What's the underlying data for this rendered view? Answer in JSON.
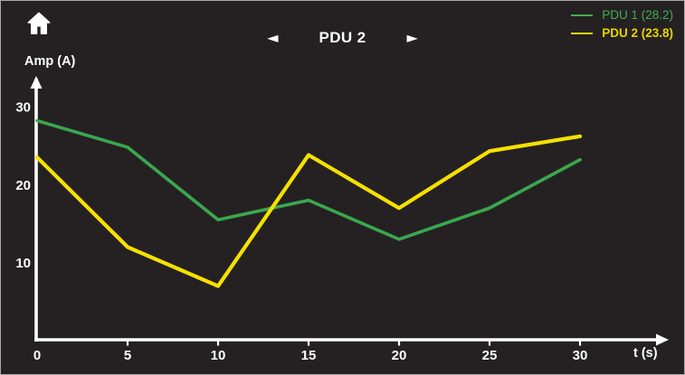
{
  "window": {
    "background": "#252122",
    "border_color": "#a8a8a8"
  },
  "header": {
    "title": "PDU 2",
    "prev_arrow": "◄",
    "next_arrow": "►"
  },
  "legend": {
    "items": [
      {
        "label": "PDU 1 (28.2)",
        "color": "#3fae52",
        "selected": false
      },
      {
        "label": "PDU 2 (23.8)",
        "color": "#e8d400",
        "selected": true
      }
    ]
  },
  "chart_data": {
    "type": "line",
    "title": "PDU 2",
    "xlabel": "t (s)",
    "ylabel": "Amp (A)",
    "x": [
      0,
      5,
      10,
      15,
      20,
      25,
      30
    ],
    "xticks": [
      0,
      5,
      10,
      15,
      20,
      25,
      30
    ],
    "yticks": [
      10,
      20,
      30
    ],
    "xlim": [
      0,
      33
    ],
    "ylim": [
      0,
      33
    ],
    "grid": false,
    "legend_position": "top-right",
    "axis_color": "#ffffff",
    "series": [
      {
        "name": "PDU 1",
        "legend": "PDU 1 (28.2)",
        "current_value": 28.2,
        "color": "#3aa74e",
        "values": [
          28.2,
          24.8,
          15.5,
          18.0,
          13.0,
          17.0,
          23.2
        ]
      },
      {
        "name": "PDU 2",
        "legend": "PDU 2 (23.8)",
        "current_value": 23.8,
        "color": "#f5e100",
        "values": [
          23.5,
          12.0,
          7.0,
          23.8,
          17.0,
          24.3,
          26.2
        ]
      }
    ]
  }
}
